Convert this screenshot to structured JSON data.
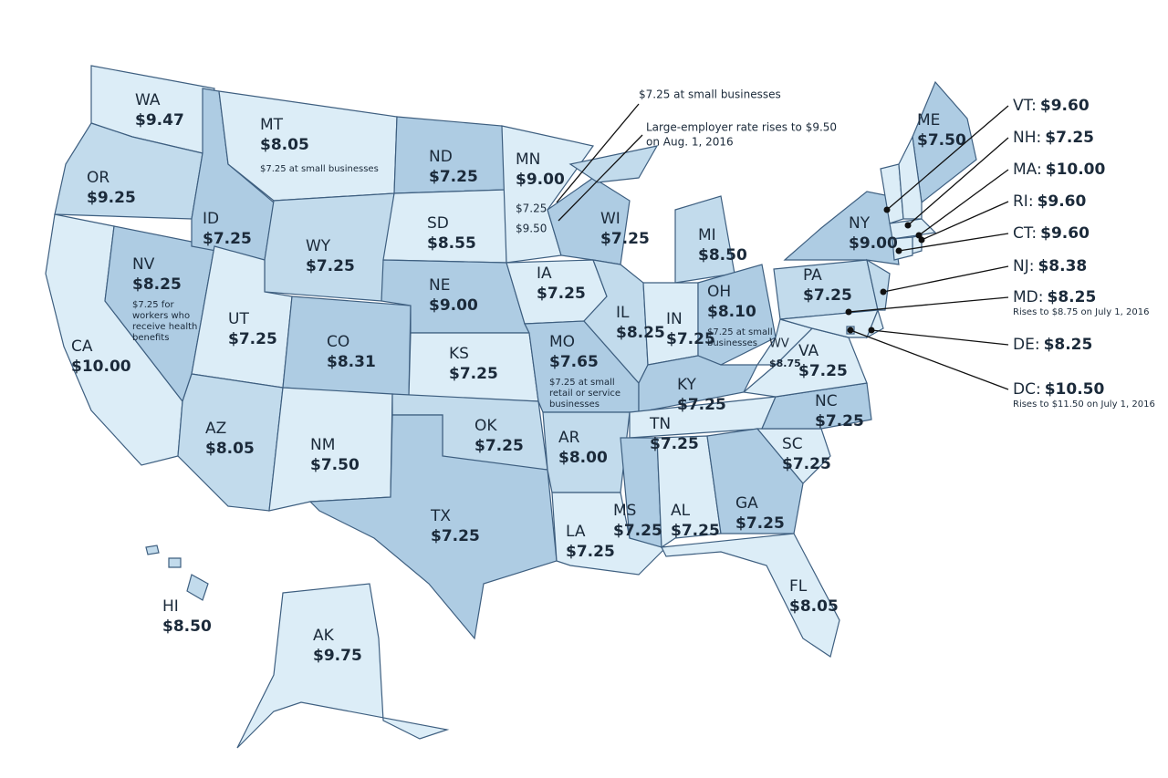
{
  "annotations": [
    "$7.25 at small businesses",
    "Large-employer rate rises to $9.50",
    "on Aug. 1, 2016"
  ],
  "states": [
    {
      "abbr": "WA",
      "wage": "$9.47",
      "color": "#dcedf7"
    },
    {
      "abbr": "OR",
      "wage": "$9.25",
      "color": "#c2dbec"
    },
    {
      "abbr": "CA",
      "wage": "$10.00",
      "color": "#dcedf7"
    },
    {
      "abbr": "NV",
      "wage": "$8.25",
      "color": "#aecce3",
      "notes": [
        "$7.25 for",
        "workers who",
        "receive health",
        "benefits"
      ]
    },
    {
      "abbr": "ID",
      "wage": "$7.25",
      "color": "#aecce3"
    },
    {
      "abbr": "MT",
      "wage": "$8.05",
      "color": "#dcedf7",
      "notes": [
        "$7.25 at small businesses"
      ]
    },
    {
      "abbr": "WY",
      "wage": "$7.25",
      "color": "#c2dbec"
    },
    {
      "abbr": "UT",
      "wage": "$7.25",
      "color": "#dcedf7"
    },
    {
      "abbr": "AZ",
      "wage": "$8.05",
      "color": "#c2dbec"
    },
    {
      "abbr": "CO",
      "wage": "$8.31",
      "color": "#aecce3"
    },
    {
      "abbr": "NM",
      "wage": "$7.50",
      "color": "#dcedf7"
    },
    {
      "abbr": "ND",
      "wage": "$7.25",
      "color": "#aecce3"
    },
    {
      "abbr": "SD",
      "wage": "$8.55",
      "color": "#dcedf7"
    },
    {
      "abbr": "NE",
      "wage": "$9.00",
      "color": "#aecce3"
    },
    {
      "abbr": "KS",
      "wage": "$7.25",
      "color": "#dcedf7"
    },
    {
      "abbr": "OK",
      "wage": "$7.25",
      "color": "#c2dbec"
    },
    {
      "abbr": "TX",
      "wage": "$7.25",
      "color": "#aecce3"
    },
    {
      "abbr": "MN",
      "wage": "$9.00",
      "color": "#dcedf7",
      "notes": [
        "$7.25",
        "$9.50"
      ]
    },
    {
      "abbr": "IA",
      "wage": "$7.25",
      "color": "#dcedf7"
    },
    {
      "abbr": "MO",
      "wage": "$7.65",
      "color": "#aecce3",
      "notes": [
        "$7.25 at small",
        "retail or service",
        "businesses"
      ]
    },
    {
      "abbr": "AR",
      "wage": "$8.00",
      "color": "#c2dbec"
    },
    {
      "abbr": "LA",
      "wage": "$7.25",
      "color": "#dcedf7"
    },
    {
      "abbr": "WI",
      "wage": "$7.25",
      "color": "#aecce3"
    },
    {
      "abbr": "IL",
      "wage": "$8.25",
      "color": "#c2dbec"
    },
    {
      "abbr": "MI",
      "wage": "$8.50",
      "color": "#c2dbec"
    },
    {
      "abbr": "IN",
      "wage": "$7.25",
      "color": "#dcedf7"
    },
    {
      "abbr": "OH",
      "wage": "$8.10",
      "color": "#aecce3",
      "notes": [
        "$7.25 at small",
        "businesses"
      ]
    },
    {
      "abbr": "KY",
      "wage": "$7.25",
      "color": "#aecce3"
    },
    {
      "abbr": "TN",
      "wage": "$7.25",
      "color": "#dcedf7"
    },
    {
      "abbr": "MS",
      "wage": "$7.25",
      "color": "#aecce3"
    },
    {
      "abbr": "AL",
      "wage": "$7.25",
      "color": "#dcedf7"
    },
    {
      "abbr": "GA",
      "wage": "$7.25",
      "color": "#aecce3"
    },
    {
      "abbr": "FL",
      "wage": "$8.05",
      "color": "#dcedf7"
    },
    {
      "abbr": "SC",
      "wage": "$7.25",
      "color": "#dcedf7"
    },
    {
      "abbr": "NC",
      "wage": "$7.25",
      "color": "#aecce3"
    },
    {
      "abbr": "VA",
      "wage": "$7.25",
      "color": "#dcedf7"
    },
    {
      "abbr": "WV",
      "wage": "$8.75",
      "color": "#dcedf7"
    },
    {
      "abbr": "PA",
      "wage": "$7.25",
      "color": "#c2dbec"
    },
    {
      "abbr": "NY",
      "wage": "$9.00",
      "color": "#aecce3"
    },
    {
      "abbr": "ME",
      "wage": "$7.50",
      "color": "#aecce3"
    },
    {
      "abbr": "VT:",
      "wage": "$9.60",
      "color": "#dcedf7"
    },
    {
      "abbr": "NH:",
      "wage": "$7.25",
      "color": "#dcedf7"
    },
    {
      "abbr": "MA:",
      "wage": "$10.00",
      "color": "#dcedf7"
    },
    {
      "abbr": "RI:",
      "wage": "$9.60",
      "color": "#dcedf7"
    },
    {
      "abbr": "CT:",
      "wage": "$9.60",
      "color": "#dcedf7"
    },
    {
      "abbr": "NJ:",
      "wage": "$8.38",
      "color": "#c2dbec"
    },
    {
      "abbr": "MD:",
      "wage": "$8.25",
      "color": "#dcedf7",
      "notes": [
        "Rises to $8.75 on July 1, 2016"
      ]
    },
    {
      "abbr": "DE:",
      "wage": "$8.25",
      "color": "#dcedf7"
    },
    {
      "abbr": "DC:",
      "wage": "$10.50",
      "color": "#dcedf7",
      "notes": [
        "Rises to $11.50 on July 1, 2016"
      ]
    },
    {
      "abbr": "HI",
      "wage": "$8.50",
      "color": "#c2dbec"
    },
    {
      "abbr": "AK",
      "wage": "$9.75",
      "color": "#dcedf7"
    }
  ]
}
